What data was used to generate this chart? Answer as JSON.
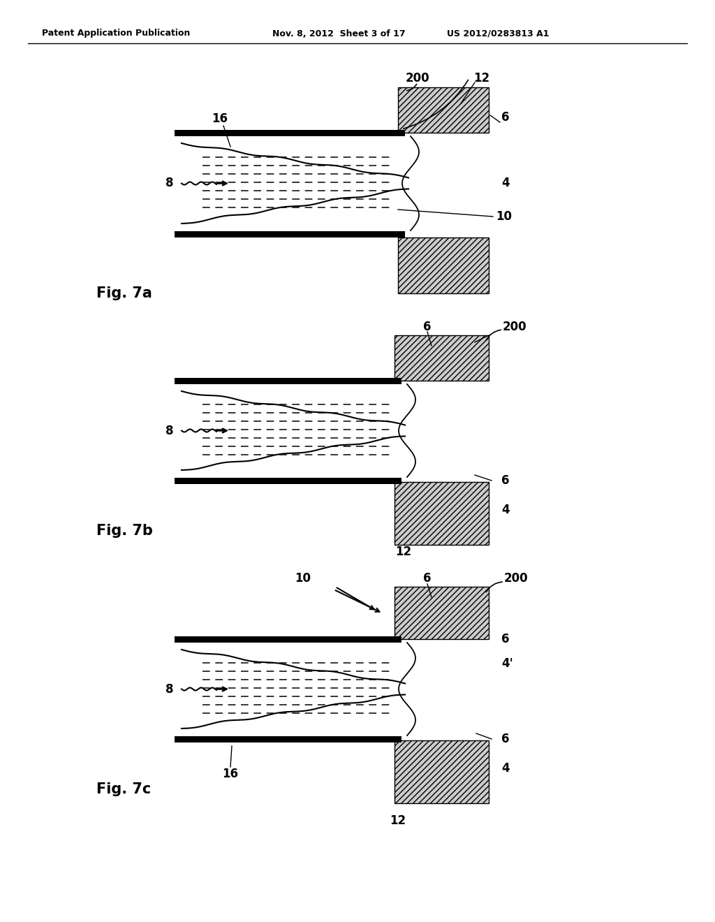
{
  "bg_color": "#ffffff",
  "header_left": "Patent Application Publication",
  "header_mid": "Nov. 8, 2012  Sheet 3 of 17",
  "header_right": "US 2012/0283813 A1",
  "fig_labels": [
    "Fig. 7a",
    "Fig. 7b",
    "Fig. 7c"
  ]
}
